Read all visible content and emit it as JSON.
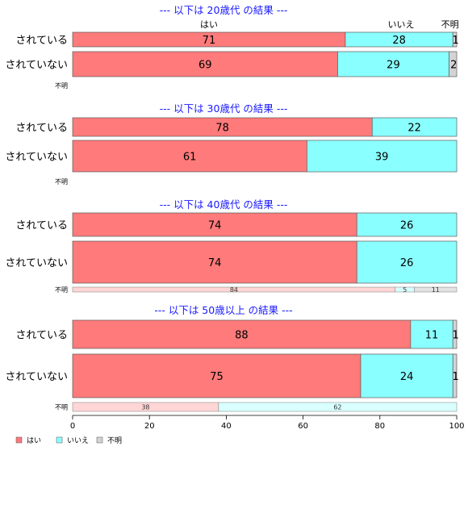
{
  "chart_data": {
    "type": "bar",
    "orientation": "horizontal",
    "stacked": true,
    "xlim": [
      0,
      100
    ],
    "xticks": [
      "0",
      "20",
      "40",
      "60",
      "80",
      "100"
    ],
    "colors": {
      "はい": "#ff7a7a",
      "いいえ": "#8affff",
      "不明": "#d3d3d3"
    },
    "column_headers": [
      "はい",
      "いいえ",
      "不明"
    ],
    "legend": {
      "placement": "bottom-left",
      "items": [
        "はい",
        "いいえ",
        "不明"
      ]
    },
    "groups": [
      {
        "title": "--- 以下は 20歳代 の結果 ---",
        "rows": [
          {
            "label": "されている",
            "values": [
              71,
              28,
              1
            ]
          },
          {
            "label": "されていない",
            "values": [
              69,
              29,
              2
            ]
          },
          {
            "label": "不明",
            "values": []
          }
        ]
      },
      {
        "title": "--- 以下は 30歳代 の結果 ---",
        "rows": [
          {
            "label": "されている",
            "values": [
              78,
              22,
              0
            ]
          },
          {
            "label": "されていない",
            "values": [
              61,
              39,
              0
            ]
          },
          {
            "label": "不明",
            "values": []
          }
        ]
      },
      {
        "title": "--- 以下は 40歳代 の結果 ---",
        "rows": [
          {
            "label": "されている",
            "values": [
              74,
              26,
              0
            ]
          },
          {
            "label": "されていない",
            "values": [
              74,
              26,
              0
            ]
          },
          {
            "label": "不明",
            "values": [
              84,
              5,
              11
            ]
          }
        ]
      },
      {
        "title": "--- 以下は 50歳以上 の結果 ---",
        "rows": [
          {
            "label": "されている",
            "values": [
              88,
              11,
              1
            ]
          },
          {
            "label": "されていない",
            "values": [
              75,
              24,
              1
            ]
          },
          {
            "label": "不明",
            "values": [
              38,
              62,
              0
            ]
          }
        ]
      }
    ]
  }
}
